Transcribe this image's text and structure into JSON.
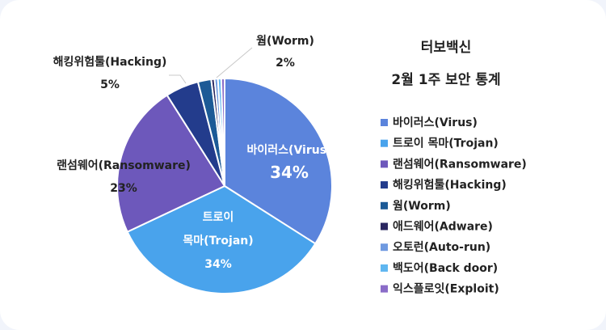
{
  "chart_data": {
    "type": "pie",
    "title_lines": [
      "터보백신",
      "2월 1주 보안 통계"
    ],
    "categories": [
      "바이러스(Virus)",
      "트로이 목마(Trojan)",
      "랜섬웨어(Ransomware)",
      "해킹위험툴(Hacking)",
      "웜(Worm)",
      "애드웨어(Adware)",
      "오토런(Auto-run)",
      "백도어(Back door)",
      "익스플로잇(Exploit)"
    ],
    "values": [
      34,
      34,
      23,
      5,
      2,
      0.5,
      0.5,
      0.5,
      0.5
    ],
    "colors": [
      "#5b84dc",
      "#49a3ec",
      "#6d58bb",
      "#233c8c",
      "#1c5a96",
      "#2a2760",
      "#6f9ae0",
      "#5fb6f0",
      "#8a6cc8"
    ],
    "data_labels": [
      {
        "lines": [
          "바이러스(Virus)",
          "34%"
        ]
      },
      {
        "lines": [
          "트로이",
          "목마(Trojan)",
          "34%"
        ]
      },
      {
        "lines": [
          "랜섬웨어(Ransomware)",
          "23%"
        ]
      },
      {
        "lines": [
          "해킹위험툴(Hacking)",
          "5%"
        ]
      },
      {
        "lines": [
          "웜(Worm)",
          "2%"
        ]
      }
    ],
    "legend_position": "right"
  }
}
